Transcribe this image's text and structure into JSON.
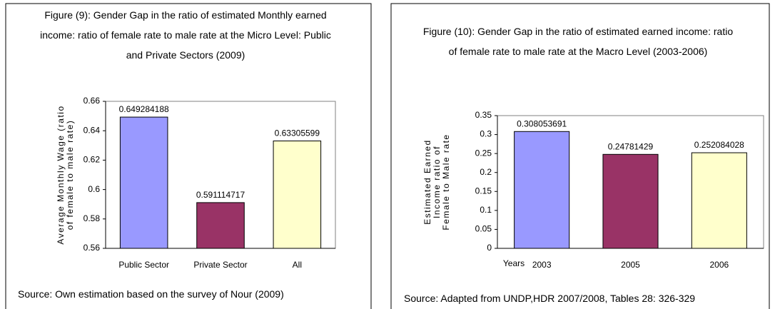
{
  "chart_data": [
    {
      "type": "bar",
      "title": "Figure (9): Gender Gap in the ratio of estimated Monthly earned income: ratio of female rate to male rate at the Micro Level: Public and Private Sectors (2009)",
      "ylabel": [
        "Average Monthly Wage (ratio",
        "of female to male rate)"
      ],
      "categories": [
        "Public Sector",
        "Private Sector",
        "All"
      ],
      "values": [
        0.649284188,
        0.591114717,
        0.63305599
      ],
      "colors": [
        "#9999ff",
        "#993366",
        "#ffffcc"
      ],
      "ylim": [
        0.56,
        0.66
      ],
      "yticks": [
        0.56,
        0.58,
        0.6,
        0.62,
        0.64,
        0.66
      ],
      "source": "Source: Own estimation based on the survey of Nour (2009)"
    },
    {
      "type": "bar",
      "title": "Figure (10): Gender Gap in the ratio of estimated earned income: ratio of female rate to male rate at the Macro Level (2003-2006)",
      "ylabel": [
        "Estimated Earned",
        "Income ratio of",
        "Female to Male rate"
      ],
      "xlabel": "Years",
      "categories": [
        "2003",
        "2005",
        "2006"
      ],
      "values": [
        0.308053691,
        0.24781429,
        0.252084028
      ],
      "colors": [
        "#9999ff",
        "#993366",
        "#ffffcc"
      ],
      "ylim": [
        0,
        0.35
      ],
      "yticks": [
        0,
        0.05,
        0.1,
        0.15,
        0.2,
        0.25,
        0.3,
        0.35
      ],
      "source": "Source: Adapted from UNDP,HDR 2007/2008, Tables 28: 326-329"
    }
  ]
}
